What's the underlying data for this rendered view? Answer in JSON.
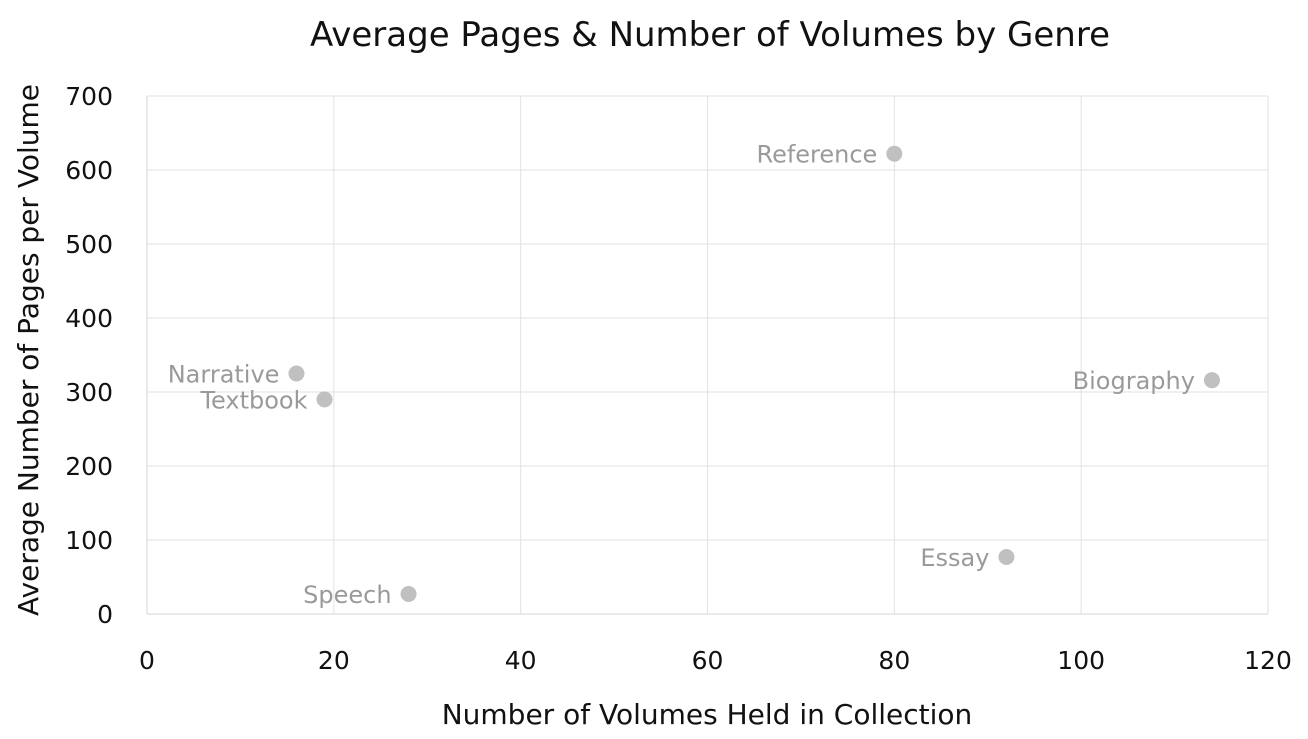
{
  "chart_data": {
    "type": "scatter",
    "title": "Average Pages & Number of Volumes by Genre",
    "xlabel": "Number of Volumes Held in Collection",
    "ylabel": "Average Number of Pages per Volume",
    "xlim": [
      0,
      120
    ],
    "ylim": [
      0,
      700
    ],
    "x_ticks": [
      "0",
      "20",
      "40",
      "60",
      "80",
      "100",
      "120"
    ],
    "y_ticks": [
      "0",
      "100",
      "200",
      "300",
      "400",
      "500",
      "600",
      "700"
    ],
    "grid": true,
    "legend": "none",
    "points": [
      {
        "label": "Reference",
        "x": 80,
        "y": 622
      },
      {
        "label": "Narrative",
        "x": 16,
        "y": 325
      },
      {
        "label": "Textbook",
        "x": 19,
        "y": 290
      },
      {
        "label": "Biography",
        "x": 114,
        "y": 316
      },
      {
        "label": "Essay",
        "x": 92,
        "y": 77
      },
      {
        "label": "Speech",
        "x": 28,
        "y": 27
      }
    ],
    "marker_color": "#c0c0c0",
    "label_color": "#9a9a9a"
  }
}
